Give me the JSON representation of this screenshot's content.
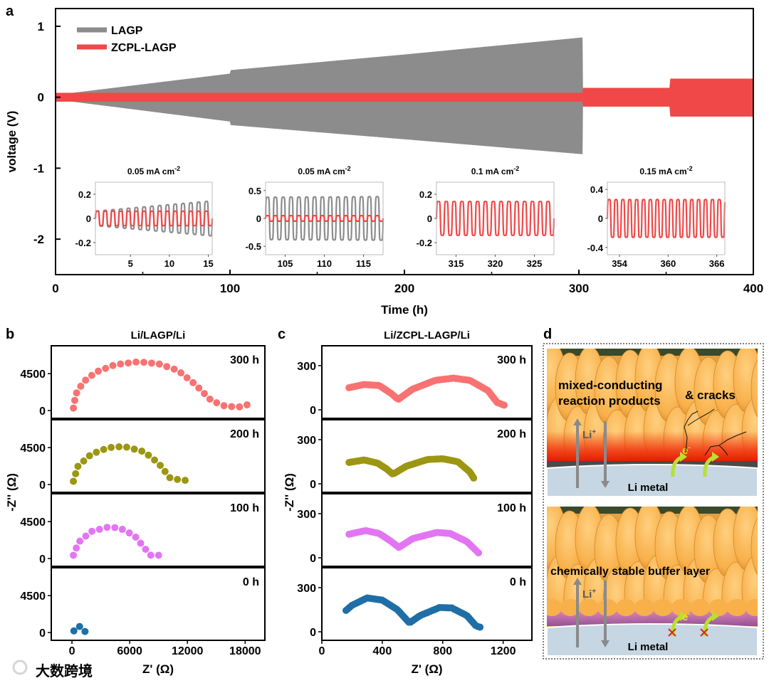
{
  "panel_labels": {
    "a": "a",
    "b": "b",
    "c": "c",
    "d": "d"
  },
  "watermark": "大数跨境",
  "colors": {
    "lagp": "#8c8c8c",
    "zcpl": "#f04848",
    "h300": "#f87272",
    "h200": "#9c9612",
    "h100": "#e276f2",
    "h0": "#1f6ea6"
  },
  "chart_data": [
    {
      "id": "a",
      "type": "area",
      "xlabel": "Time (h)",
      "ylabel": "voltage (V)",
      "xlim": [
        0,
        400
      ],
      "ylim": [
        -2.5,
        1.25
      ],
      "xticks": [
        "0",
        "100",
        "200",
        "300",
        "400"
      ],
      "yticks": [
        "1",
        "0",
        "-1",
        "-2"
      ],
      "legend": {
        "placement": "top-left",
        "entries": [
          "LAGP",
          "ZCPL-LAGP"
        ]
      },
      "series": [
        {
          "name": "LAGP",
          "color_key": "lagp",
          "upper": [
            [
              0,
              0.03
            ],
            [
              100,
              0.33
            ],
            [
              100.5,
              0.38
            ],
            [
              200,
              0.6
            ],
            [
              302,
              0.84
            ],
            [
              302.3,
              0
            ]
          ],
          "lower": [
            [
              0,
              -0.03
            ],
            [
              100,
              -0.34
            ],
            [
              100.5,
              -0.39
            ],
            [
              200,
              -0.59
            ],
            [
              302,
              -0.8
            ],
            [
              302.3,
              0
            ]
          ]
        },
        {
          "name": "ZCPL-LAGP",
          "color_key": "zcpl",
          "upper": [
            [
              0,
              0.06
            ],
            [
              302,
              0.06
            ],
            [
              302.5,
              0.13
            ],
            [
              352,
              0.13
            ],
            [
              352.5,
              0.26
            ],
            [
              400,
              0.26
            ]
          ],
          "lower": [
            [
              0,
              -0.06
            ],
            [
              302,
              -0.06
            ],
            [
              302.5,
              -0.13
            ],
            [
              352,
              -0.13
            ],
            [
              352.5,
              -0.27
            ],
            [
              400,
              -0.27
            ]
          ]
        }
      ],
      "insets": [
        {
          "title": "0.05 mA cm",
          "sup": "-2",
          "xlim": [
            0.5,
            15.5
          ],
          "ylim": [
            -0.3,
            0.3
          ],
          "xticks": [
            "5",
            "10",
            "15"
          ],
          "xtick_vals": [
            5,
            10,
            15
          ],
          "yticks": [
            "0.2",
            "0",
            "-0.2"
          ],
          "ytick_vals": [
            0.2,
            0,
            -0.2
          ],
          "period": 1.0,
          "series": [
            {
              "name": "LAGP",
              "color_key": "lagp",
              "amp": [
                0.06,
                0.145
              ]
            },
            {
              "name": "ZCPL-LAGP",
              "color_key": "zcpl",
              "amp": [
                0.06,
                0.06
              ]
            }
          ]
        },
        {
          "title": "0.05 mA cm",
          "sup": "-2",
          "xlim": [
            102.5,
            117.5
          ],
          "ylim": [
            -0.65,
            0.65
          ],
          "xticks": [
            "105",
            "110",
            "115"
          ],
          "xtick_vals": [
            105,
            110,
            115
          ],
          "yticks": [
            "0.5",
            "0",
            "-0.5"
          ],
          "ytick_vals": [
            0.5,
            0,
            -0.5
          ],
          "period": 1.0,
          "series": [
            {
              "name": "LAGP",
              "color_key": "lagp",
              "amp": [
                0.38,
                0.39
              ]
            },
            {
              "name": "ZCPL-LAGP",
              "color_key": "zcpl",
              "amp": [
                0.05,
                0.05
              ]
            }
          ]
        },
        {
          "title": "0.1 mA cm",
          "sup": "-2",
          "xlim": [
            312.5,
            327.5
          ],
          "ylim": [
            -0.3,
            0.3
          ],
          "xticks": [
            "315",
            "320",
            "325"
          ],
          "xtick_vals": [
            315,
            320,
            325
          ],
          "yticks": [
            "0.2",
            "0",
            "-0.2"
          ],
          "ytick_vals": [
            0.2,
            0,
            -0.2
          ],
          "period": 1.0,
          "series": [
            {
              "name": "ZCPL-LAGP",
              "color_key": "zcpl",
              "amp": [
                0.14,
                0.14
              ]
            }
          ]
        },
        {
          "title": "0.15 mA cm",
          "sup": "-2",
          "xlim": [
            352.5,
            367.0
          ],
          "ylim": [
            -0.5,
            0.5
          ],
          "xticks": [
            "354",
            "360",
            "366"
          ],
          "xtick_vals": [
            354,
            360,
            366
          ],
          "yticks": [
            "0.4",
            "0",
            "-0.4"
          ],
          "ytick_vals": [
            0.4,
            0,
            -0.4
          ],
          "period": 0.85,
          "series": [
            {
              "name": "ZCPL-LAGP",
              "color_key": "zcpl",
              "amp": [
                0.26,
                0.26
              ]
            }
          ]
        }
      ]
    },
    {
      "id": "b",
      "type": "scatter",
      "title": "Li/LAGP/Li",
      "xlabel": "Z' (Ω)",
      "ylabel": "-Z'' (Ω)",
      "xlim": [
        -2150,
        20050
      ],
      "ylim": [
        -950,
        7900
      ],
      "xticks": [
        "0",
        "6000",
        "12000",
        "18000"
      ],
      "xtick_vals": [
        0,
        6000,
        12000,
        18000
      ],
      "yticks": [
        "0",
        "4500"
      ],
      "ytick_vals": [
        0,
        4500
      ],
      "series": [
        {
          "name": "300 h",
          "color_key": "h300",
          "points": [
            [
              150,
              300
            ],
            [
              400,
              2000
            ],
            [
              1200,
              3500
            ],
            [
              2500,
              4700
            ],
            [
              4500,
              5600
            ],
            [
              6900,
              5950
            ],
            [
              9000,
              5700
            ],
            [
              11000,
              4900
            ],
            [
              12800,
              3200
            ],
            [
              14500,
              1200
            ],
            [
              16000,
              500
            ],
            [
              17500,
              450
            ],
            [
              18200,
              700
            ]
          ]
        },
        {
          "name": "200 h",
          "color_key": "h200",
          "points": [
            [
              150,
              400
            ],
            [
              600,
              2200
            ],
            [
              2000,
              3700
            ],
            [
              3800,
              4500
            ],
            [
              5400,
              4650
            ],
            [
              7500,
              4000
            ],
            [
              9000,
              2600
            ],
            [
              10200,
              800
            ],
            [
              11500,
              500
            ],
            [
              12500,
              550
            ]
          ]
        },
        {
          "name": "100 h",
          "color_key": "h100",
          "points": [
            [
              150,
              400
            ],
            [
              700,
              2000
            ],
            [
              2000,
              3300
            ],
            [
              3800,
              3850
            ],
            [
              5000,
              3700
            ],
            [
              6500,
              2800
            ],
            [
              7600,
              1200
            ],
            [
              8200,
              400
            ],
            [
              9500,
              400
            ]
          ]
        },
        {
          "name": "0 h",
          "color_key": "h0",
          "points": [
            [
              200,
              200
            ],
            [
              500,
              700
            ],
            [
              900,
              750
            ],
            [
              1200,
              400
            ],
            [
              1400,
              50
            ]
          ]
        }
      ]
    },
    {
      "id": "c",
      "type": "scatter",
      "title": "Li/ZCPL-LAGP/Li",
      "xlabel": "Z' (Ω)",
      "ylabel": "-Z'' (Ω)",
      "xlim": [
        0,
        1390
      ],
      "ylim": [
        -58,
        435
      ],
      "xticks": [
        "0",
        "400",
        "800",
        "1200"
      ],
      "xtick_vals": [
        0,
        400,
        800,
        1200
      ],
      "yticks": [
        "0",
        "300"
      ],
      "ytick_vals": [
        0,
        300
      ],
      "series": [
        {
          "name": "300 h",
          "color_key": "h300",
          "points": [
            [
              180,
              150
            ],
            [
              280,
              172
            ],
            [
              380,
              165
            ],
            [
              460,
              110
            ],
            [
              505,
              70
            ],
            [
              600,
              140
            ],
            [
              750,
              200
            ],
            [
              870,
              215
            ],
            [
              980,
              200
            ],
            [
              1100,
              130
            ],
            [
              1160,
              50
            ],
            [
              1210,
              30
            ]
          ]
        },
        {
          "name": "200 h",
          "color_key": "h200",
          "points": [
            [
              180,
              145
            ],
            [
              280,
              162
            ],
            [
              370,
              140
            ],
            [
              430,
              100
            ],
            [
              470,
              65
            ],
            [
              560,
              120
            ],
            [
              700,
              165
            ],
            [
              800,
              170
            ],
            [
              900,
              150
            ],
            [
              980,
              80
            ],
            [
              1010,
              30
            ]
          ]
        },
        {
          "name": "100 h",
          "color_key": "h100",
          "points": [
            [
              180,
              160
            ],
            [
              290,
              185
            ],
            [
              380,
              165
            ],
            [
              460,
              110
            ],
            [
              510,
              70
            ],
            [
              600,
              130
            ],
            [
              760,
              172
            ],
            [
              850,
              165
            ],
            [
              960,
              110
            ],
            [
              1020,
              50
            ],
            [
              1040,
              30
            ]
          ]
        },
        {
          "name": "0 h",
          "color_key": "h0",
          "points": [
            [
              160,
              145
            ],
            [
              200,
              180
            ],
            [
              300,
              230
            ],
            [
              400,
              215
            ],
            [
              500,
              150
            ],
            [
              580,
              60
            ],
            [
              650,
              110
            ],
            [
              780,
              165
            ],
            [
              860,
              162
            ],
            [
              960,
              110
            ],
            [
              1020,
              40
            ],
            [
              1050,
              30
            ]
          ]
        }
      ]
    }
  ],
  "panel_d": {
    "top": {
      "label1": "mixed-conducting",
      "label2": "reaction products",
      "label3": "& cracks",
      "li_ion": "Li",
      "li_sup": "+",
      "electron": "e",
      "e_sup": "-",
      "metal": "Li metal"
    },
    "bottom": {
      "label1": "chemically stable buffer layer",
      "li_ion": "Li",
      "li_sup": "+",
      "electron": "e",
      "e_sup": "-",
      "metal": "Li metal"
    }
  }
}
